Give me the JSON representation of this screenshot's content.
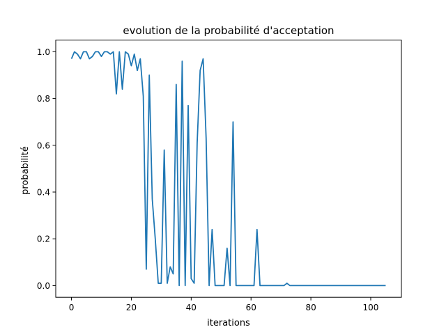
{
  "chart_data": {
    "type": "line",
    "title": "evolution de la probabilité d'acceptation",
    "xlabel": "iterations",
    "ylabel": "probabilité",
    "xlim": [
      -5.25,
      110.25
    ],
    "ylim": [
      -0.05,
      1.05
    ],
    "x_ticks": [
      0,
      20,
      40,
      60,
      80,
      100
    ],
    "y_ticks": [
      0.0,
      0.2,
      0.4,
      0.6,
      0.8,
      1.0
    ],
    "x_tick_labels": [
      "0",
      "20",
      "40",
      "60",
      "80",
      "100"
    ],
    "y_tick_labels": [
      "0.0",
      "0.2",
      "0.4",
      "0.6",
      "0.8",
      "1.0"
    ],
    "grid": false,
    "legend": "none",
    "series": [
      {
        "color": "#1f77b4",
        "x": [
          0,
          1,
          2,
          3,
          4,
          5,
          6,
          7,
          8,
          9,
          10,
          11,
          12,
          13,
          14,
          15,
          16,
          17,
          18,
          19,
          20,
          21,
          22,
          23,
          24,
          25,
          26,
          27,
          28,
          29,
          30,
          31,
          32,
          33,
          34,
          35,
          36,
          37,
          38,
          39,
          40,
          41,
          42,
          43,
          44,
          45,
          46,
          47,
          48,
          49,
          50,
          51,
          52,
          53,
          54,
          55,
          56,
          57,
          58,
          59,
          60,
          61,
          62,
          63,
          64,
          65,
          66,
          67,
          68,
          69,
          70,
          71,
          72,
          73,
          74,
          75,
          76,
          77,
          78,
          79,
          80,
          81,
          82,
          83,
          84,
          85,
          86,
          87,
          88,
          89,
          90,
          91,
          92,
          93,
          94,
          95,
          96,
          97,
          98,
          99,
          100,
          101,
          102,
          103,
          104,
          105
        ],
        "values": [
          0.97,
          1.0,
          0.99,
          0.97,
          1.0,
          1.0,
          0.97,
          0.98,
          1.0,
          1.0,
          0.98,
          1.0,
          1.0,
          0.99,
          1.0,
          0.82,
          1.0,
          0.84,
          1.0,
          0.99,
          0.94,
          0.99,
          0.92,
          0.97,
          0.81,
          0.07,
          0.9,
          0.37,
          0.2,
          0.01,
          0.01,
          0.58,
          0.01,
          0.08,
          0.05,
          0.86,
          0.0,
          0.96,
          0.0,
          0.77,
          0.03,
          0.01,
          0.61,
          0.92,
          0.97,
          0.63,
          0.0,
          0.24,
          0.0,
          0.0,
          0.0,
          0.0,
          0.16,
          0.0,
          0.7,
          0.0,
          0.0,
          0.0,
          0.0,
          0.0,
          0.0,
          0.0,
          0.24,
          0.0,
          0.0,
          0.0,
          0.0,
          0.0,
          0.0,
          0.0,
          0.0,
          0.0,
          0.01,
          0.0,
          0.0,
          0.0,
          0.0,
          0.0,
          0.0,
          0.0,
          0.0,
          0.0,
          0.0,
          0.0,
          0.0,
          0.0,
          0.0,
          0.0,
          0.0,
          0.0,
          0.0,
          0.0,
          0.0,
          0.0,
          0.0,
          0.0,
          0.0,
          0.0,
          0.0,
          0.0,
          0.0,
          0.0,
          0.0,
          0.0,
          0.0,
          0.0
        ]
      }
    ]
  }
}
